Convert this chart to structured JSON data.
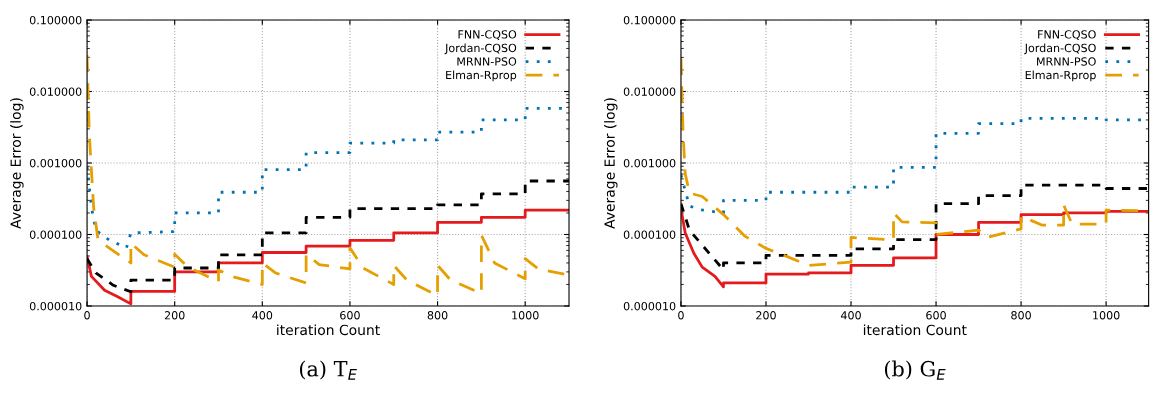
{
  "chart_data": [
    {
      "type": "line",
      "title": "(a) T$_{E}$",
      "xlabel": "iteration Count",
      "ylabel": "Average Error (log)",
      "log": "y",
      "grid": true,
      "legend": "top right",
      "xlim": [
        0,
        1100
      ],
      "xticks": [
        0,
        200,
        400,
        600,
        800,
        1000
      ],
      "ylim": [
        1e-05,
        0.1
      ],
      "yticks": [
        {
          "value": 1e-05,
          "label": "0.000010"
        },
        {
          "value": 0.0001,
          "label": "0.000100"
        },
        {
          "value": 0.001,
          "label": "0.001000"
        },
        {
          "value": 0.01,
          "label": "0.010000"
        },
        {
          "value": 0.1,
          "label": "0.100000"
        }
      ],
      "series": [
        {
          "name": "FNN-CQSO",
          "color": "#e41a1c",
          "line_style": "solid",
          "x": [
            0,
            10,
            40,
            70,
            100,
            100,
            200,
            200,
            300,
            300,
            400,
            400,
            500,
            500,
            600,
            600,
            700,
            700,
            800,
            800,
            900,
            900,
            1000,
            1000,
            1100
          ],
          "values": [
            4.9e-05,
            2.6e-05,
            1.66e-05,
            1.35e-05,
            1.07e-05,
            1.6e-05,
            1.6e-05,
            3e-05,
            3e-05,
            4e-05,
            4e-05,
            5.6e-05,
            5.6e-05,
            6.9e-05,
            6.9e-05,
            8.3e-05,
            8.3e-05,
            0.000105,
            0.000105,
            0.000148,
            0.000148,
            0.000174,
            0.000174,
            0.00022,
            0.00022
          ]
        },
        {
          "name": "Jordan-CQSO",
          "color": "#000000",
          "line_style": "dashed",
          "x": [
            0,
            20,
            60,
            100,
            100,
            200,
            200,
            300,
            300,
            400,
            400,
            500,
            500,
            600,
            600,
            800,
            800,
            900,
            900,
            1000,
            1000,
            1100
          ],
          "values": [
            4.6e-05,
            2.9e-05,
            1.95e-05,
            1.58e-05,
            2.3e-05,
            2.3e-05,
            3.4e-05,
            3.4e-05,
            5.2e-05,
            5.2e-05,
            0.000105,
            0.000105,
            0.000174,
            0.000174,
            0.00023,
            0.00023,
            0.00026,
            0.00026,
            0.00037,
            0.00037,
            0.00056,
            0.00056
          ]
        },
        {
          "name": "MRNN-PSO",
          "color": "#0072b2",
          "line_style": "dotted",
          "x": [
            0,
            10,
            20,
            50,
            90,
            100,
            200,
            200,
            300,
            300,
            400,
            400,
            500,
            500,
            600,
            600,
            700,
            700,
            800,
            800,
            900,
            900,
            1000,
            1000,
            1100
          ],
          "values": [
            0.00089,
            0.00024,
            0.000115,
            8.4e-05,
            6.5e-05,
            0.000105,
            0.00011,
            0.0002,
            0.0002,
            0.00039,
            0.00039,
            0.00081,
            0.00081,
            0.0014,
            0.0014,
            0.0019,
            0.0019,
            0.0021,
            0.0021,
            0.0027,
            0.0027,
            0.004,
            0.004,
            0.0058,
            0.0058
          ]
        },
        {
          "name": "Elman-Rprop",
          "color": "#e69f00",
          "line_style": "dashed",
          "x": [
            0,
            5,
            15,
            25,
            50,
            100,
            100,
            130,
            200,
            200,
            230,
            300,
            300,
            330,
            400,
            400,
            430,
            500,
            500,
            530,
            600,
            600,
            630,
            700,
            700,
            730,
            800,
            800,
            830,
            900,
            900,
            930,
            1000,
            1000,
            1030,
            1100
          ],
          "values": [
            0.032,
            0.0026,
            0.00024,
            8.5e-05,
            6.5e-05,
            4e-05,
            7.6e-05,
            5.2e-05,
            3.5e-05,
            5.3e-05,
            3.5e-05,
            2.2e-05,
            3.2e-05,
            2.6e-05,
            2e-05,
            4e-05,
            2.9e-05,
            2.1e-05,
            5.3e-05,
            3.8e-05,
            3.3e-05,
            6.5e-05,
            3.4e-05,
            2e-05,
            3.7e-05,
            2.3e-05,
            1.4e-05,
            3.7e-05,
            2.3e-05,
            1.5e-05,
            9.8e-05,
            4e-05,
            2.4e-05,
            4.6e-05,
            3.3e-05,
            2.7e-05
          ]
        }
      ]
    },
    {
      "type": "line",
      "title": "(b) G$_{E}$",
      "xlabel": "iteration Count",
      "ylabel": "Average Error (log)",
      "log": "y",
      "grid": true,
      "legend": "top right",
      "xlim": [
        0,
        1100
      ],
      "xticks": [
        0,
        200,
        400,
        600,
        800,
        1000
      ],
      "ylim": [
        1e-05,
        0.1
      ],
      "yticks": [
        {
          "value": 1e-05,
          "label": "0.000010"
        },
        {
          "value": 0.0001,
          "label": "0.000100"
        },
        {
          "value": 0.001,
          "label": "0.001000"
        },
        {
          "value": 0.01,
          "label": "0.010000"
        },
        {
          "value": 0.1,
          "label": "0.100000"
        }
      ],
      "series": [
        {
          "name": "FNN-CQSO",
          "color": "#e41a1c",
          "line_style": "solid",
          "x": [
            0,
            10,
            30,
            50,
            80,
            100,
            100,
            200,
            200,
            300,
            300,
            400,
            400,
            500,
            500,
            600,
            600,
            700,
            700,
            800,
            800,
            900,
            900,
            1000,
            1000,
            1100
          ],
          "values": [
            0.00023,
            0.000105,
            5.5e-05,
            3.5e-05,
            2.6e-05,
            1.85e-05,
            2.1e-05,
            2.1e-05,
            2.8e-05,
            2.8e-05,
            2.9e-05,
            2.9e-05,
            3.7e-05,
            3.7e-05,
            4.7e-05,
            4.7e-05,
            0.0001,
            0.0001,
            0.000148,
            0.000148,
            0.00019,
            0.00019,
            0.0002,
            0.0002,
            0.00021,
            0.00021
          ]
        },
        {
          "name": "Jordan-CQSO",
          "color": "#000000",
          "line_style": "dashed",
          "x": [
            0,
            20,
            50,
            100,
            100,
            200,
            200,
            400,
            400,
            500,
            500,
            600,
            600,
            700,
            700,
            800,
            800,
            1000,
            1000,
            1100
          ],
          "values": [
            0.00027,
            0.000115,
            7.1e-05,
            3.2e-05,
            4e-05,
            4e-05,
            5.1e-05,
            5.1e-05,
            6.3e-05,
            6.3e-05,
            8.5e-05,
            8.5e-05,
            0.00027,
            0.00027,
            0.00035,
            0.00035,
            0.00049,
            0.00049,
            0.00044,
            0.00044
          ]
        },
        {
          "name": "MRNN-PSO",
          "color": "#0072b2",
          "line_style": "dotted",
          "x": [
            0,
            20,
            50,
            100,
            100,
            200,
            200,
            400,
            400,
            500,
            500,
            600,
            600,
            700,
            700,
            800,
            800,
            1000,
            1000,
            1100
          ],
          "values": [
            0.00068,
            0.00025,
            0.00022,
            0.0002,
            0.0003,
            0.0003,
            0.00039,
            0.00039,
            0.00046,
            0.00046,
            0.00087,
            0.00087,
            0.0026,
            0.0026,
            0.00355,
            0.00355,
            0.0042,
            0.0042,
            0.004,
            0.004
          ]
        },
        {
          "name": "Elman-Rprop",
          "color": "#e69f00",
          "line_style": "dashed",
          "x": [
            0,
            5,
            10,
            20,
            50,
            100,
            150,
            200,
            250,
            300,
            400,
            400,
            500,
            500,
            520,
            600,
            600,
            700,
            720,
            800,
            800,
            850,
            900,
            900,
            920,
            1000,
            1000,
            1100
          ],
          "values": [
            0.029,
            0.0026,
            0.00071,
            0.00038,
            0.00034,
            0.00019,
            9.5e-05,
            6.4e-05,
            4.9e-05,
            3.7e-05,
            4.1e-05,
            9.1e-05,
            8.4e-05,
            0.0002,
            0.00015,
            0.000145,
            0.0001,
            0.000115,
            9.1e-05,
            0.00012,
            0.00018,
            0.000135,
            0.000135,
            0.00026,
            0.00014,
            0.00014,
            0.00022,
            0.000215
          ]
        }
      ]
    }
  ]
}
